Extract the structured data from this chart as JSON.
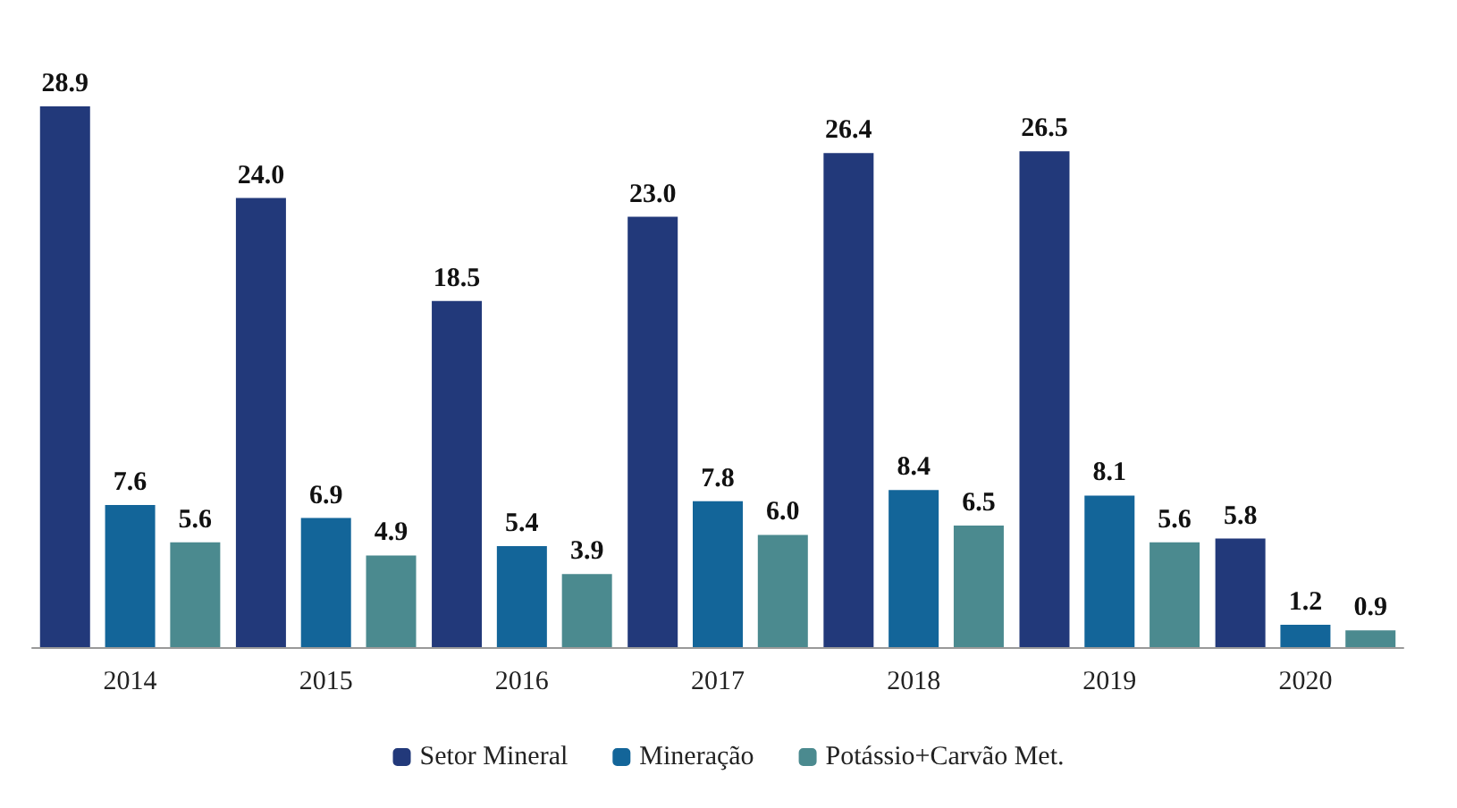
{
  "chart_data": {
    "type": "bar",
    "categories": [
      "2014",
      "2015",
      "2016",
      "2017",
      "2018",
      "2019",
      "2020"
    ],
    "series": [
      {
        "name": "Setor Mineral",
        "color": "#22397a",
        "values": [
          28.9,
          24.0,
          18.5,
          23.0,
          26.4,
          26.5,
          5.8
        ],
        "value_labels": [
          "28.9",
          "24.0",
          "18.5",
          "23.0",
          "26.4",
          "26.5",
          "5.8"
        ]
      },
      {
        "name": "Mineração",
        "color": "#136599",
        "values": [
          7.6,
          6.9,
          5.4,
          7.8,
          8.4,
          8.1,
          1.2
        ],
        "value_labels": [
          "7.6",
          "6.9",
          "5.4",
          "7.8",
          "8.4",
          "8.1",
          "1.2"
        ]
      },
      {
        "name": "Potássio+Carvão Met.",
        "color": "#4b8a8f",
        "values": [
          5.6,
          4.9,
          3.9,
          6.0,
          6.5,
          5.6,
          0.9
        ],
        "value_labels": [
          "5.6",
          "4.9",
          "3.9",
          "6.0",
          "6.5",
          "5.6",
          "0.9"
        ]
      }
    ],
    "legend": "bottom"
  }
}
